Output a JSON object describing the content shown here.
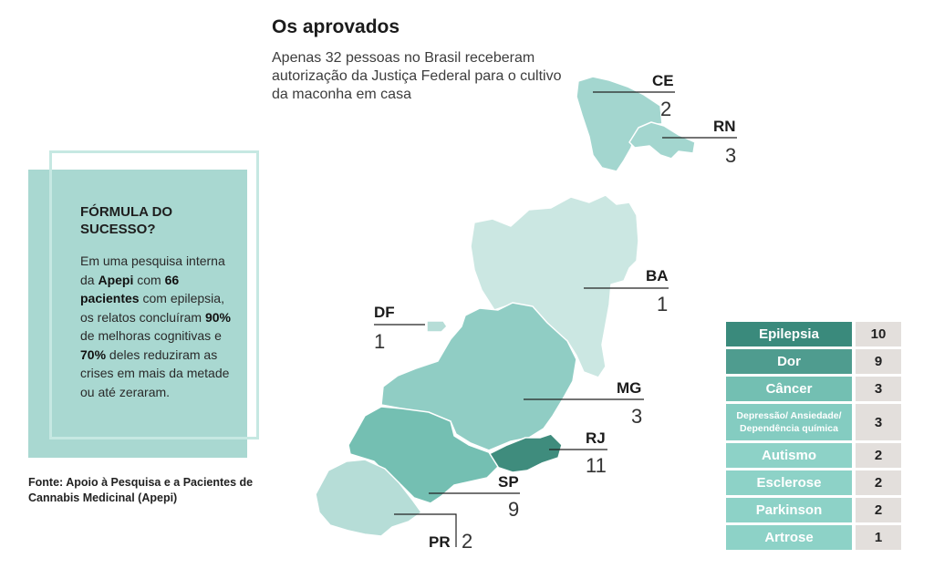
{
  "header": {
    "title": "Os aprovados",
    "subtitle": "Apenas 32 pessoas no Brasil receberam autorização da Justiça Federal para o cultivo da maconha em casa"
  },
  "sidebar_box": {
    "heading": "FÓRMULA DO SUCESSO?",
    "text_1": "Em uma pesquisa interna da ",
    "bold_1": "Apepi",
    "text_2": " com ",
    "bold_2": "66 pacientes",
    "text_3": " com epilepsia, os relatos concluíram ",
    "bold_3": "90%",
    "text_4": " de melhoras cognitivas e ",
    "bold_4": "70%",
    "text_5": " deles reduziram as crises em mais da metade ou até zeraram."
  },
  "source": "Fonte: Apoio à Pesquisa e a Pacientes de Cannabis Medicinal (Apepi)",
  "states": [
    {
      "abbr": "CE",
      "count": "2"
    },
    {
      "abbr": "RN",
      "count": "3"
    },
    {
      "abbr": "BA",
      "count": "1"
    },
    {
      "abbr": "DF",
      "count": "1"
    },
    {
      "abbr": "MG",
      "count": "3"
    },
    {
      "abbr": "RJ",
      "count": "11"
    },
    {
      "abbr": "SP",
      "count": "9"
    },
    {
      "abbr": "PR",
      "count": "2"
    }
  ],
  "conditions": [
    {
      "label": "Epilepsia",
      "count": "10",
      "color": "#3a8a7c"
    },
    {
      "label": "Dor",
      "count": "9",
      "color": "#4f9c8f"
    },
    {
      "label": "Câncer",
      "count": "3",
      "color": "#73bfb2"
    },
    {
      "label": "Depressão/ Ansiedade/ Dependência química",
      "count": "3",
      "color": "#84ccc1"
    },
    {
      "label": "Autismo",
      "count": "2",
      "color": "#8dd2c7"
    },
    {
      "label": "Esclerose",
      "count": "2",
      "color": "#8dd2c7"
    },
    {
      "label": "Parkinson",
      "count": "2",
      "color": "#8dd2c7"
    },
    {
      "label": "Artrose",
      "count": "1",
      "color": "#8dd2c7"
    }
  ],
  "colors": {
    "rj": "#3f8c7d",
    "sp": "#74bfb2",
    "mg": "#90cdc4",
    "ce_rn": "#a3d6cf",
    "pr_df": "#b6ddd7",
    "ba": "#cbe7e2",
    "count_bg": "#e3dfdc"
  }
}
